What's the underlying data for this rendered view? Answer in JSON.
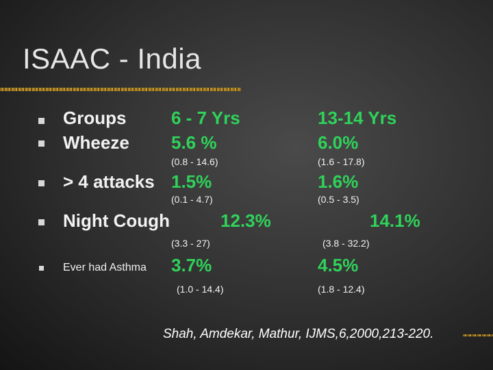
{
  "slide": {
    "title": "ISAAC - India",
    "rows": {
      "groups": {
        "label": "Groups",
        "col1": "6 - 7 Yrs",
        "col2": "13-14 Yrs"
      },
      "wheeze": {
        "label": "Wheeze",
        "col1": "5.6 %",
        "col2": "6.0%",
        "ci1": "(0.8 - 14.6)",
        "ci2": "(1.6 - 17.8)"
      },
      "attacks": {
        "label": "> 4 attacks",
        "col1": "1.5%",
        "col2": "1.6%",
        "ci1": "(0.1 - 4.7)",
        "ci2": "(0.5 - 3.5)"
      },
      "night_cough": {
        "label": "Night Cough",
        "col1": "12.3%",
        "col2": "14.1%",
        "ci1": "(3.3 - 27)",
        "ci2": "(3.8 - 32.2)"
      },
      "asthma": {
        "label": "Ever had Asthma",
        "col1": "3.7%",
        "col2": "4.5%",
        "ci1": "(1.0 - 14.4)",
        "ci2": "(1.8 - 12.4)"
      }
    },
    "citation": "Shah, Amdekar, Mathur, IJMS,6,2000,213-220."
  },
  "colors": {
    "value_green": "#2fd35a",
    "text": "#f2f2f2",
    "rule_gold": "#c89a34"
  }
}
